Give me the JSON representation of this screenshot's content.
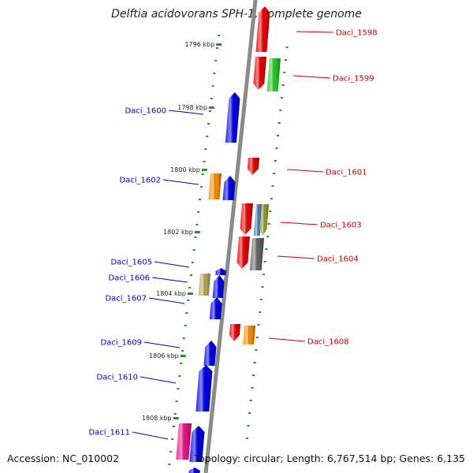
{
  "title": "Delftia acidovorans SPH-1, complete genome",
  "accession": "Accession: NC_010002",
  "summary": "Topology: circular; Length: 6,767,514 bp; Genes: 6,135",
  "colors": {
    "backbone": "#8a8a8a",
    "tick_dots": "#2e8b2e",
    "label_left": "#0000cc",
    "label_right": "#cc0000",
    "red": "#ee0000",
    "green": "#22cc22",
    "blue": "#0000ee",
    "orange": "#ff8c00",
    "gray": "#666666",
    "khaki": "#b8a85a",
    "steelblue": "#4682b4",
    "olive": "#8f9a2e",
    "magenta": "#ee1188"
  },
  "scale_labels": [
    "1796 kbp",
    "1798 kbp",
    "1800 kbp",
    "1802 kbp",
    "1804 kbp",
    "1806 kbp",
    "1808 kbp"
  ],
  "genes": [
    {
      "name": "Daci_1598",
      "strand": "right",
      "color": "red",
      "dir": "up",
      "label": "Daci_1598"
    },
    {
      "name": "Daci_1599",
      "strand": "right",
      "color": "red",
      "dir": "down",
      "label": "Daci_1599"
    },
    {
      "name": "Daci_1599b",
      "strand": "right",
      "color": "green",
      "dir": "none",
      "label": ""
    },
    {
      "name": "Daci_1600",
      "strand": "left",
      "color": "blue",
      "dir": "up",
      "label": "Daci_1600"
    },
    {
      "name": "Daci_1601",
      "strand": "right",
      "color": "red",
      "dir": "down",
      "label": "Daci_1601"
    },
    {
      "name": "Daci_1602",
      "strand": "left",
      "color": "orange",
      "dir": "none",
      "label": "Daci_1602"
    },
    {
      "name": "Daci_1602b",
      "strand": "left",
      "color": "blue",
      "dir": "up",
      "label": ""
    },
    {
      "name": "Daci_1603",
      "strand": "right",
      "color": "red",
      "dir": "down",
      "label": "Daci_1603"
    },
    {
      "name": "Daci_1603b",
      "strand": "right",
      "color": "steelblue",
      "dir": "none",
      "label": ""
    },
    {
      "name": "Daci_1603c",
      "strand": "right",
      "color": "olive",
      "dir": "down",
      "label": ""
    },
    {
      "name": "Daci_1604",
      "strand": "right",
      "color": "red",
      "dir": "down",
      "label": ""
    },
    {
      "name": "Daci_1604b",
      "strand": "right",
      "color": "gray",
      "dir": "none",
      "label": "Daci_1604"
    },
    {
      "name": "Daci_1605",
      "strand": "left",
      "color": "blue",
      "dir": "up",
      "label": "Daci_1605"
    },
    {
      "name": "Daci_1606",
      "strand": "left",
      "color": "khaki",
      "dir": "none",
      "label": "Daci_1606"
    },
    {
      "name": "Daci_1606b",
      "strand": "left",
      "color": "blue",
      "dir": "up",
      "label": ""
    },
    {
      "name": "Daci_1607",
      "strand": "left",
      "color": "blue",
      "dir": "up",
      "label": "Daci_1607"
    },
    {
      "name": "Daci_1608",
      "strand": "right",
      "color": "red",
      "dir": "down",
      "label": ""
    },
    {
      "name": "Daci_1608b",
      "strand": "right",
      "color": "orange",
      "dir": "none",
      "label": "Daci_1608"
    },
    {
      "name": "Daci_1609",
      "strand": "left",
      "color": "blue",
      "dir": "up",
      "label": "Daci_1609"
    },
    {
      "name": "Daci_1610",
      "strand": "left",
      "color": "blue",
      "dir": "up",
      "label": "Daci_1610"
    },
    {
      "name": "Daci_1611",
      "strand": "left",
      "color": "magenta",
      "dir": "none",
      "label": "Daci_1611"
    },
    {
      "name": "Daci_1611b",
      "strand": "left",
      "color": "blue",
      "dir": "up",
      "label": ""
    },
    {
      "name": "Daci_1612",
      "strand": "left",
      "color": "blue",
      "dir": "up",
      "label": ""
    }
  ]
}
